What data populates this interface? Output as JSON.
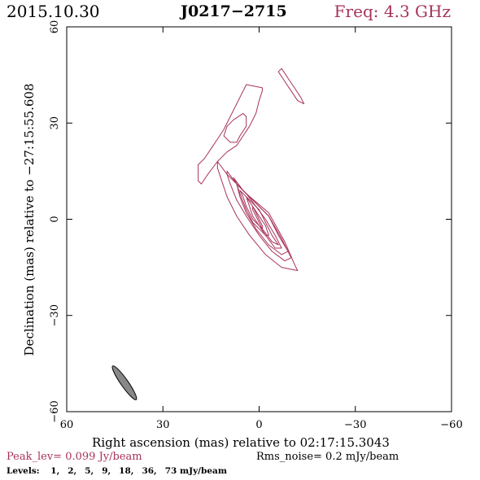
{
  "header": {
    "date": "2015.10.30",
    "source": "J0217−2715",
    "freq_label": "Freq:",
    "freq_value": "4.3",
    "freq_unit": "GHz"
  },
  "footer": {
    "peak_label": "Peak_lev=",
    "peak_value": "0.099",
    "peak_unit": "Jy/beam",
    "rms_label": "Rms_noise=",
    "rms_value": "0.2",
    "rms_unit": "mJy/beam",
    "levels_label": "Levels:",
    "levels": [
      "1,",
      "2,",
      "5,",
      "9,",
      "18,",
      "36,",
      "73"
    ],
    "levels_unit": "mJy/beam"
  },
  "colors": {
    "contour": "#a8325a",
    "beam_fill": "#888888",
    "text_accent": "#a8325a"
  },
  "chart_data": {
    "type": "contour",
    "xlabel": "Right ascension (mas) relative to 02:17:15.3043",
    "ylabel": "Declination (mas) relative to −27:15:55.608",
    "xlim": [
      60,
      -60
    ],
    "ylim": [
      -60,
      60
    ],
    "xticks": [
      60,
      30,
      0,
      -30,
      -60
    ],
    "yticks": [
      60,
      30,
      0,
      -30,
      -60
    ],
    "xtick_labels": [
      "60",
      "30",
      "0",
      "−30",
      "−60"
    ],
    "ytick_labels": [
      "60",
      "30",
      "0",
      "−30",
      "−60"
    ],
    "beam": {
      "x": 42,
      "y": -51,
      "major": 12.8,
      "minor": 2.3,
      "pa_deg": 35
    },
    "contours": [
      {
        "level": 1,
        "points": [
          [
            13,
            18
          ],
          [
            10,
            14
          ],
          [
            4,
            8
          ],
          [
            -3,
            2
          ],
          [
            -8,
            -7
          ],
          [
            -11,
            -14
          ],
          [
            -12,
            -16
          ],
          [
            -7,
            -15
          ],
          [
            -2,
            -11
          ],
          [
            3,
            -5
          ],
          [
            7,
            1
          ],
          [
            10,
            7
          ],
          [
            12,
            13
          ],
          [
            13,
            16
          ]
        ]
      },
      {
        "level": 2,
        "points": [
          [
            10,
            15
          ],
          [
            7,
            11
          ],
          [
            2,
            6
          ],
          [
            -3,
            1
          ],
          [
            -7,
            -6
          ],
          [
            -10,
            -12
          ],
          [
            -8,
            -13
          ],
          [
            -4,
            -10
          ],
          [
            0,
            -5
          ],
          [
            4,
            1
          ],
          [
            7,
            6
          ],
          [
            9,
            11
          ],
          [
            10,
            14
          ]
        ]
      },
      {
        "level": 5,
        "points": [
          [
            8,
            13
          ],
          [
            5,
            9
          ],
          [
            1,
            5
          ],
          [
            -3,
            1
          ],
          [
            -6,
            -5
          ],
          [
            -9,
            -10
          ],
          [
            -7,
            -11
          ],
          [
            -3,
            -8
          ],
          [
            1,
            -3
          ],
          [
            4,
            2
          ],
          [
            6,
            7
          ],
          [
            7,
            11
          ]
        ]
      },
      {
        "level": 9,
        "points": [
          [
            7,
            11
          ],
          [
            4,
            8
          ],
          [
            1,
            4
          ],
          [
            -2,
            0
          ],
          [
            -5,
            -5
          ],
          [
            -7,
            -9
          ],
          [
            -5,
            -9
          ],
          [
            -2,
            -5
          ],
          [
            2,
            -1
          ],
          [
            4,
            3
          ],
          [
            6,
            8
          ]
        ]
      },
      {
        "level": 18,
        "points": [
          [
            6,
            9
          ],
          [
            3,
            6
          ],
          [
            0,
            3
          ],
          [
            -2,
            -1
          ],
          [
            -4,
            -5
          ],
          [
            -6,
            -8
          ],
          [
            -4,
            -7
          ],
          [
            -1,
            -3
          ],
          [
            2,
            0
          ],
          [
            4,
            4
          ],
          [
            5,
            7
          ]
        ]
      },
      {
        "level": 36,
        "points": [
          [
            4,
            7
          ],
          [
            2,
            4
          ],
          [
            0,
            1
          ],
          [
            -2,
            -2
          ],
          [
            -3,
            -5
          ],
          [
            -2,
            -5
          ],
          [
            0,
            -2
          ],
          [
            2,
            1
          ],
          [
            3,
            4
          ]
        ]
      },
      {
        "level": 73,
        "points": [
          [
            2,
            4
          ],
          [
            1,
            2
          ],
          [
            0,
            0
          ],
          [
            -1,
            -2
          ],
          [
            -1,
            -3
          ],
          [
            0,
            -1
          ],
          [
            1,
            1
          ],
          [
            2,
            3
          ]
        ]
      },
      {
        "level": 1,
        "points": [
          [
            4,
            42
          ],
          [
            6,
            38
          ],
          [
            9,
            32
          ],
          [
            11,
            28
          ],
          [
            13,
            25
          ],
          [
            15,
            22
          ],
          [
            17,
            19
          ],
          [
            19,
            17
          ],
          [
            19,
            12
          ],
          [
            18,
            11
          ],
          [
            16,
            14
          ],
          [
            13,
            18
          ],
          [
            10,
            21
          ],
          [
            7,
            23
          ],
          [
            5,
            26
          ],
          [
            3,
            29
          ],
          [
            1,
            33
          ],
          [
            0,
            37
          ],
          [
            -1,
            40
          ],
          [
            -1,
            41
          ]
        ]
      },
      {
        "level": 2,
        "points": [
          [
            5,
            33
          ],
          [
            8,
            31
          ],
          [
            10,
            29
          ],
          [
            11,
            26
          ],
          [
            9,
            24
          ],
          [
            7,
            24
          ],
          [
            6,
            26
          ],
          [
            4,
            29
          ],
          [
            4,
            32
          ]
        ]
      },
      {
        "level": 1,
        "points": [
          [
            -7,
            47
          ],
          [
            -9,
            44
          ],
          [
            -11,
            41
          ],
          [
            -13,
            38
          ],
          [
            -14,
            36
          ],
          [
            -12,
            37
          ],
          [
            -10,
            40
          ],
          [
            -8,
            43
          ],
          [
            -6,
            46
          ]
        ]
      }
    ]
  }
}
